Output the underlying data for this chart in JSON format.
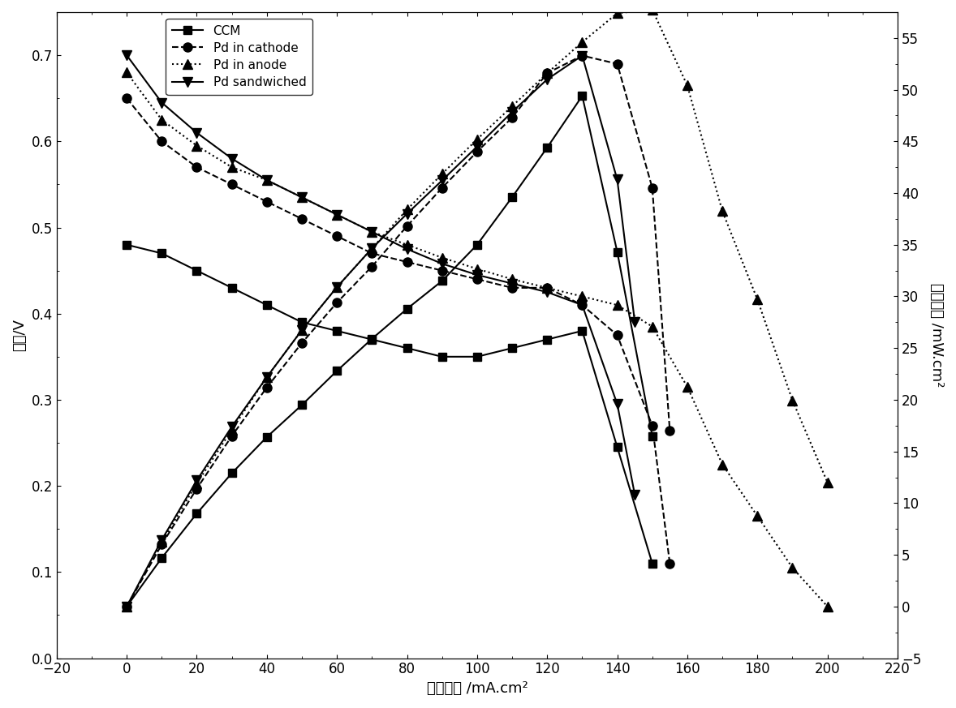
{
  "voltage_curves": {
    "CCM": {
      "x": [
        0,
        10,
        20,
        30,
        40,
        50,
        60,
        70,
        80,
        90,
        100,
        110,
        120,
        130,
        140,
        150
      ],
      "y": [
        0.48,
        0.47,
        0.45,
        0.43,
        0.41,
        0.39,
        0.38,
        0.37,
        0.36,
        0.35,
        0.35,
        0.36,
        0.37,
        0.38,
        0.245,
        0.11
      ],
      "linestyle": "-",
      "marker": "s",
      "label": "CCM"
    },
    "Pd_cathode": {
      "x": [
        0,
        10,
        20,
        30,
        40,
        50,
        60,
        70,
        80,
        90,
        100,
        110,
        120,
        130,
        140,
        150,
        155
      ],
      "y": [
        0.65,
        0.6,
        0.57,
        0.55,
        0.53,
        0.51,
        0.49,
        0.47,
        0.46,
        0.45,
        0.44,
        0.43,
        0.43,
        0.41,
        0.375,
        0.27,
        0.11
      ],
      "linestyle": "--",
      "marker": "o",
      "label": "Pd in cathode"
    },
    "Pd_anode": {
      "x": [
        0,
        10,
        20,
        30,
        40,
        50,
        60,
        70,
        80,
        90,
        100,
        110,
        120,
        130,
        140,
        150,
        160,
        170,
        180,
        190,
        200
      ],
      "y": [
        0.68,
        0.625,
        0.595,
        0.57,
        0.555,
        0.535,
        0.515,
        0.495,
        0.48,
        0.465,
        0.452,
        0.44,
        0.43,
        0.42,
        0.41,
        0.385,
        0.315,
        0.225,
        0.165,
        0.105,
        0.06
      ],
      "linestyle": ":",
      "marker": "^",
      "label": "Pd in anode"
    },
    "Pd_sandwich": {
      "x": [
        0,
        10,
        20,
        30,
        40,
        50,
        60,
        70,
        80,
        90,
        100,
        110,
        120,
        130,
        140,
        145
      ],
      "y": [
        0.7,
        0.645,
        0.61,
        0.58,
        0.555,
        0.535,
        0.515,
        0.495,
        0.475,
        0.458,
        0.445,
        0.435,
        0.425,
        0.41,
        0.295,
        0.19
      ],
      "linestyle": "-",
      "marker": "v",
      "label": "Pd sandwiched"
    }
  },
  "power_curves": {
    "CCM": {
      "x": [
        0,
        10,
        20,
        30,
        40,
        50,
        60,
        70,
        80,
        90,
        100,
        110,
        120,
        130,
        140,
        150
      ],
      "y": [
        0.0,
        4.7,
        9.0,
        12.9,
        16.4,
        19.5,
        22.8,
        25.9,
        28.8,
        31.5,
        35.0,
        39.6,
        44.4,
        49.4,
        34.3,
        16.5
      ],
      "linestyle": "-",
      "marker": "s"
    },
    "Pd_cathode": {
      "x": [
        0,
        10,
        20,
        30,
        40,
        50,
        60,
        70,
        80,
        90,
        100,
        110,
        120,
        130,
        140,
        150,
        155
      ],
      "y": [
        0.0,
        6.0,
        11.4,
        16.5,
        21.2,
        25.5,
        29.4,
        32.9,
        36.8,
        40.5,
        44.0,
        47.3,
        51.6,
        53.3,
        52.5,
        40.5,
        17.0
      ],
      "linestyle": "--",
      "marker": "o"
    },
    "Pd_anode": {
      "x": [
        0,
        10,
        20,
        30,
        40,
        50,
        60,
        70,
        80,
        90,
        100,
        110,
        120,
        130,
        140,
        150,
        160,
        170,
        180,
        190,
        200
      ],
      "y": [
        0.0,
        6.25,
        11.9,
        17.1,
        22.2,
        26.75,
        30.9,
        34.65,
        38.4,
        41.85,
        45.2,
        48.4,
        51.6,
        54.6,
        57.4,
        57.75,
        50.4,
        38.25,
        29.7,
        19.95,
        12.0
      ],
      "linestyle": ":",
      "marker": "^"
    },
    "Pd_sandwich": {
      "x": [
        0,
        10,
        20,
        30,
        40,
        50,
        60,
        70,
        80,
        90,
        100,
        110,
        120,
        130,
        140,
        145
      ],
      "y": [
        0.0,
        6.45,
        12.2,
        17.4,
        22.2,
        26.75,
        30.9,
        34.65,
        38.0,
        41.22,
        44.5,
        47.85,
        51.0,
        53.3,
        41.3,
        27.55
      ],
      "linestyle": "-",
      "marker": "v"
    }
  },
  "xlim": [
    -20,
    220
  ],
  "ylim_left": [
    0.0,
    0.75
  ],
  "ylim_right": [
    -5,
    57.5
  ],
  "xlabel": "电流密度 /mA.cm²",
  "ylabel_left": "电压/V",
  "ylabel_right": "功率密度 /mW.cm²",
  "xticks": [
    -20,
    0,
    20,
    40,
    60,
    80,
    100,
    120,
    140,
    160,
    180,
    200,
    220
  ],
  "yticks_left": [
    0.0,
    0.1,
    0.2,
    0.3,
    0.4,
    0.5,
    0.6,
    0.7
  ],
  "yticks_right": [
    -5,
    0,
    5,
    10,
    15,
    20,
    25,
    30,
    35,
    40,
    45,
    50,
    55
  ],
  "background_color": "#ffffff",
  "font_size": 13
}
